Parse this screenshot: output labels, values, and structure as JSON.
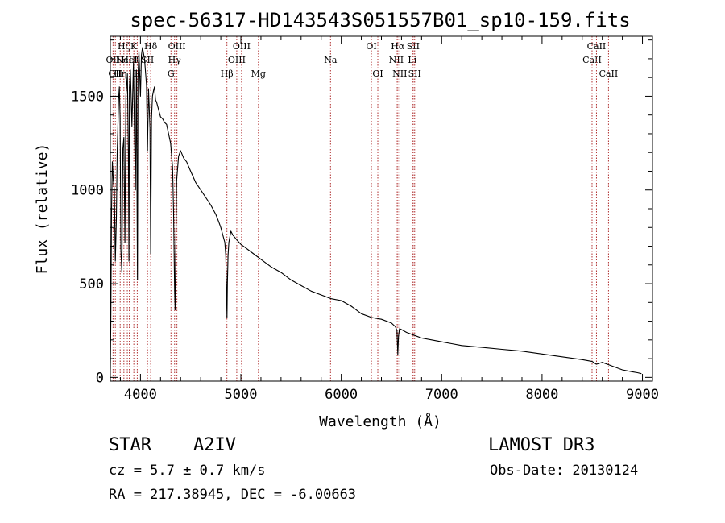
{
  "chart_data": {
    "type": "line",
    "title": "spec-56317-HD143543S051557B01_sp10-159.fits",
    "xlabel": "Wavelength (Å)",
    "ylabel": "Flux (relative)",
    "xlim": [
      3700,
      9100
    ],
    "ylim": [
      -20,
      1820
    ],
    "xticks": [
      4000,
      5000,
      6000,
      7000,
      8000,
      9000
    ],
    "xtick_labels": [
      "4000",
      "5000",
      "6000",
      "7000",
      "8000",
      "9000"
    ],
    "yticks": [
      0,
      500,
      1000,
      1500
    ],
    "ytick_labels": [
      "0",
      "500",
      "1000",
      "1500"
    ],
    "line_color": "#000000",
    "marker_color": "#b03030",
    "series": [
      {
        "name": "flux",
        "x": [
          3700,
          3705,
          3712,
          3720,
          3730,
          3740,
          3750,
          3760,
          3768,
          3775,
          3782,
          3790,
          3797,
          3805,
          3815,
          3825,
          3835,
          3840,
          3845,
          3855,
          3870,
          3880,
          3885,
          3890,
          3900,
          3915,
          3930,
          3940,
          3950,
          3960,
          3965,
          3970,
          3975,
          3985,
          4000,
          4010,
          4020,
          4040,
          4060,
          4070,
          4080,
          4095,
          4102,
          4110,
          4120,
          4130,
          4140,
          4150,
          4160,
          4180,
          4200,
          4220,
          4240,
          4260,
          4280,
          4300,
          4320,
          4330,
          4340,
          4345,
          4350,
          4360,
          4380,
          4400,
          4430,
          4460,
          4500,
          4550,
          4600,
          4650,
          4700,
          4750,
          4780,
          4800,
          4820,
          4840,
          4850,
          4858,
          4862,
          4866,
          4872,
          4880,
          4900,
          4920,
          4950,
          5000,
          5050,
          5100,
          5200,
          5300,
          5400,
          5500,
          5600,
          5700,
          5800,
          5900,
          6000,
          6100,
          6200,
          6300,
          6400,
          6500,
          6540,
          6555,
          6563,
          6570,
          6580,
          6600,
          6650,
          6700,
          6800,
          6900,
          7000,
          7100,
          7200,
          7400,
          7600,
          7800,
          8000,
          8200,
          8400,
          8500,
          8540,
          8600,
          8700,
          8800,
          8900,
          8950,
          8990
        ],
        "y": [
          40,
          300,
          900,
          1150,
          1050,
          1000,
          620,
          850,
          1200,
          1320,
          1480,
          1550,
          1390,
          680,
          560,
          1220,
          1280,
          1020,
          720,
          1500,
          1620,
          1200,
          620,
          1550,
          1640,
          1340,
          1680,
          1310,
          1000,
          1640,
          1080,
          520,
          1600,
          1740,
          1500,
          1720,
          1760,
          1700,
          1560,
          1210,
          1540,
          1330,
          660,
          1380,
          1500,
          1530,
          1550,
          1480,
          1470,
          1430,
          1390,
          1380,
          1360,
          1350,
          1300,
          1250,
          1120,
          880,
          460,
          360,
          620,
          1050,
          1180,
          1210,
          1170,
          1150,
          1100,
          1040,
          1000,
          960,
          920,
          870,
          830,
          800,
          760,
          720,
          650,
          450,
          320,
          500,
          650,
          720,
          780,
          760,
          740,
          710,
          690,
          670,
          630,
          590,
          560,
          520,
          490,
          460,
          440,
          420,
          410,
          380,
          340,
          320,
          310,
          290,
          270,
          250,
          120,
          220,
          260,
          255,
          240,
          230,
          210,
          200,
          190,
          180,
          170,
          160,
          150,
          140,
          125,
          110,
          95,
          85,
          70,
          80,
          60,
          40,
          30,
          25,
          20
        ]
      }
    ],
    "line_markers": [
      {
        "wavelength": 3727,
        "label": "OII",
        "row": 2
      },
      {
        "wavelength": 3750,
        "label": "OII",
        "row": 3
      },
      {
        "wavelength": 3798,
        "label": "Hη",
        "row": 3
      },
      {
        "wavelength": 3835,
        "label": "Hζ",
        "row": 1
      },
      {
        "wavelength": 3869,
        "label": "NeIII",
        "row": 2
      },
      {
        "wavelength": 3889,
        "label": "HeI",
        "row": 2
      },
      {
        "wavelength": 3934,
        "label": "K",
        "row": 1
      },
      {
        "wavelength": 3968,
        "label": "H",
        "row": 3
      },
      {
        "wavelength": 4102,
        "label": "Hδ",
        "row": 1
      },
      {
        "wavelength": 4070,
        "label": "SII",
        "row": 2
      },
      {
        "wavelength": 4304,
        "label": "G",
        "row": 3
      },
      {
        "wavelength": 4340,
        "label": "Hγ",
        "row": 2
      },
      {
        "wavelength": 4363,
        "label": "OIII",
        "row": 1
      },
      {
        "wavelength": 4861,
        "label": "Hβ",
        "row": 3
      },
      {
        "wavelength": 4959,
        "label": "OIII",
        "row": 2
      },
      {
        "wavelength": 5007,
        "label": "OIII",
        "row": 1
      },
      {
        "wavelength": 5175,
        "label": "Mg",
        "row": 3
      },
      {
        "wavelength": 5893,
        "label": "Na",
        "row": 2
      },
      {
        "wavelength": 6300,
        "label": "OI",
        "row": 1
      },
      {
        "wavelength": 6364,
        "label": "OI",
        "row": 3
      },
      {
        "wavelength": 6548,
        "label": "NII",
        "row": 2
      },
      {
        "wavelength": 6563,
        "label": "Hα",
        "row": 1
      },
      {
        "wavelength": 6583,
        "label": "NII",
        "row": 3
      },
      {
        "wavelength": 6707,
        "label": "Li",
        "row": 2
      },
      {
        "wavelength": 6716,
        "label": "SII",
        "row": 1
      },
      {
        "wavelength": 6731,
        "label": "SII",
        "row": 3
      },
      {
        "wavelength": 8498,
        "label": "CaII",
        "row": 2
      },
      {
        "wavelength": 8542,
        "label": "CaII",
        "row": 1
      },
      {
        "wavelength": 8662,
        "label": "CaII",
        "row": 3
      }
    ]
  },
  "info": {
    "class": "STAR",
    "subclass": "A2IV",
    "survey": "LAMOST DR3",
    "cz": "cz = 5.7 ± 0.7 km/s",
    "obs_date": "Obs-Date: 20130124",
    "coords": "RA = 217.38945, DEC =  -6.00663"
  }
}
